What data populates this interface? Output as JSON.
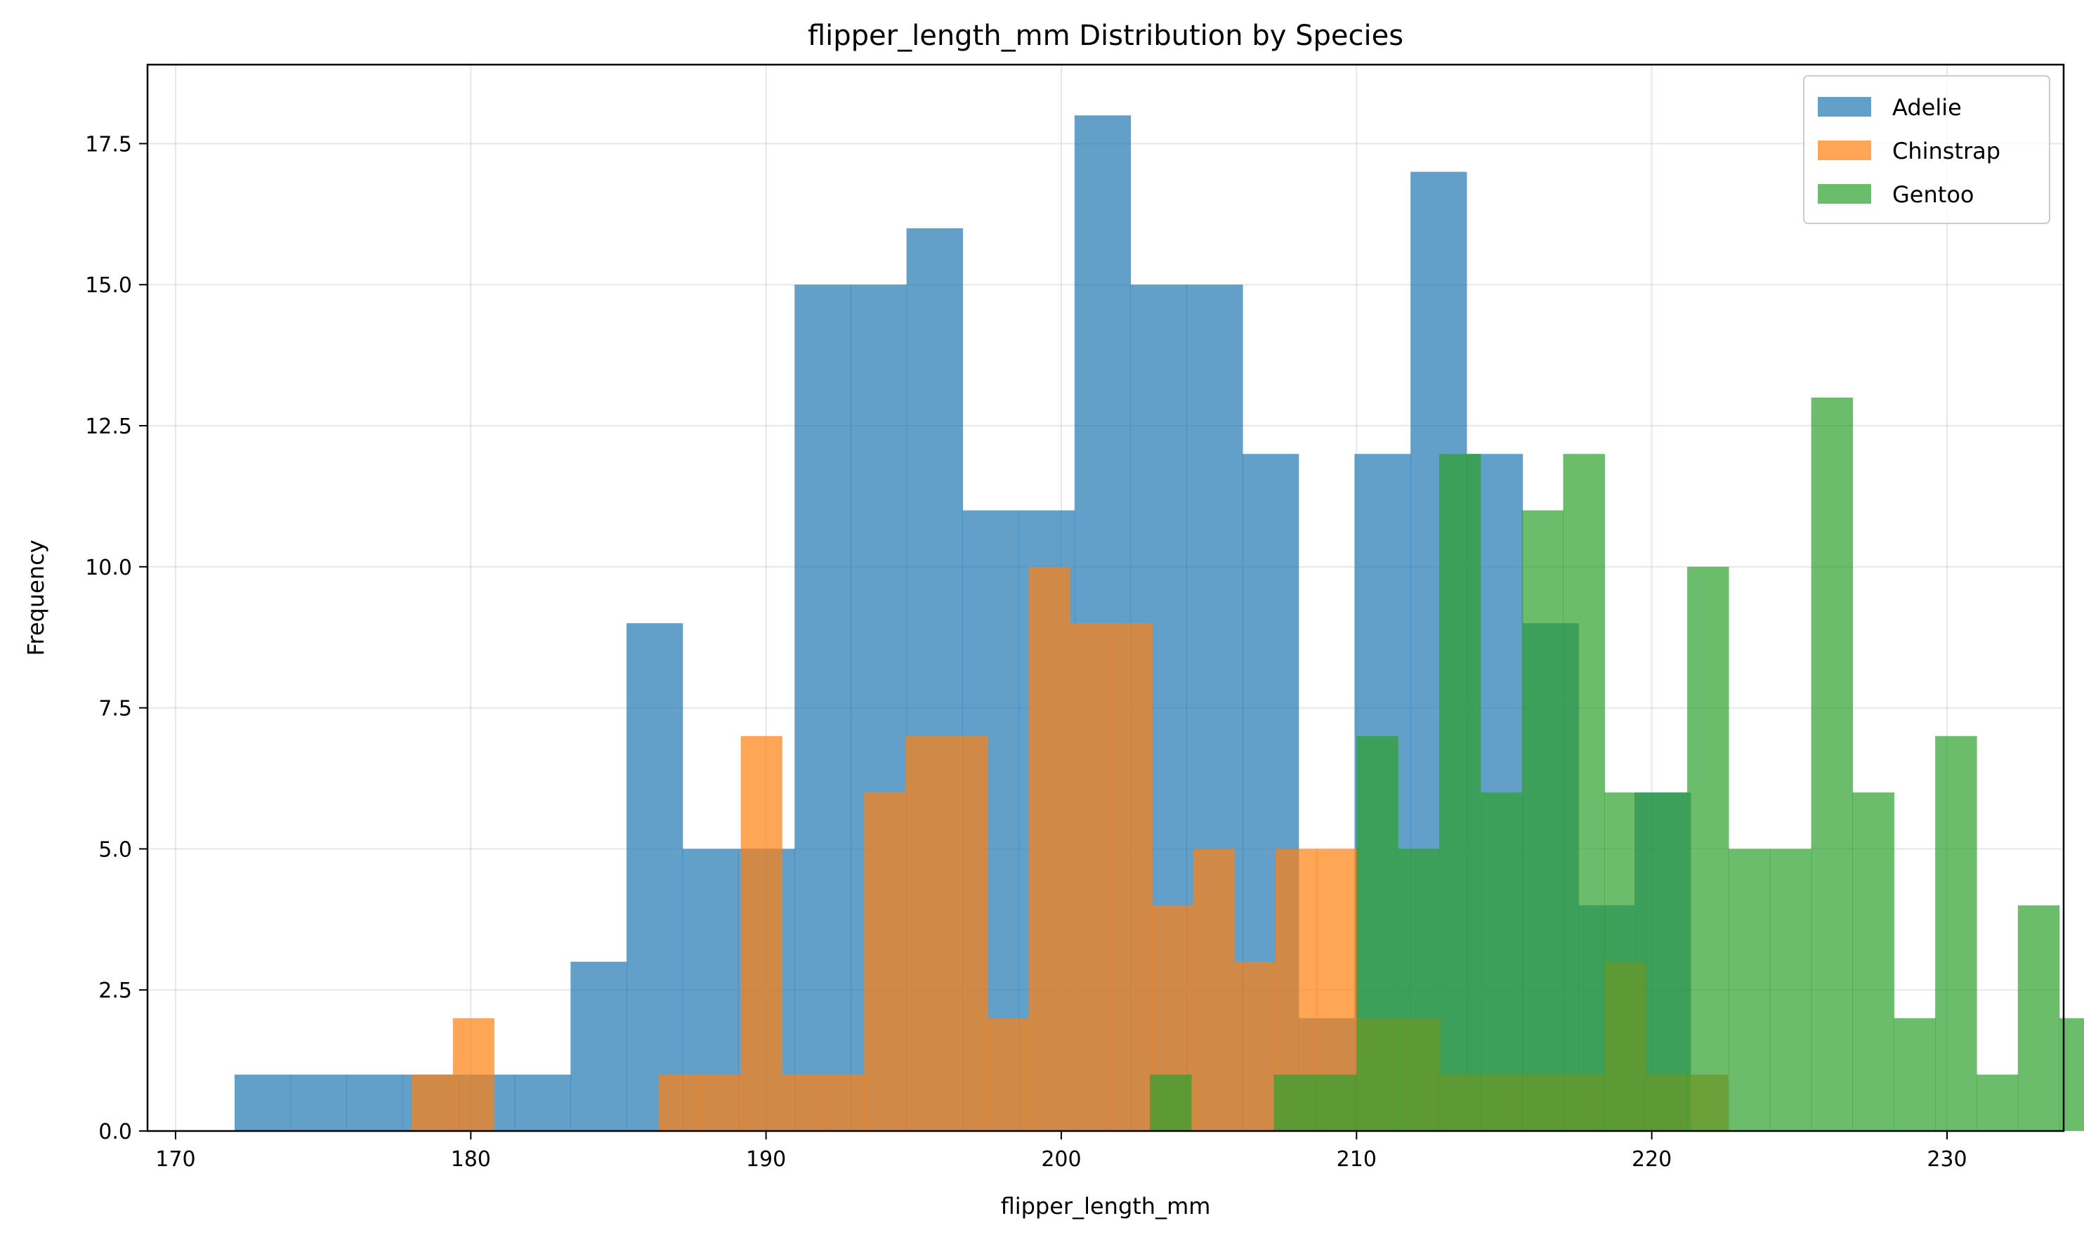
{
  "chart_data": {
    "type": "histogram",
    "title": "flipper_length_mm Distribution by Species",
    "xlabel": "flipper_length_mm",
    "ylabel": "Frequency",
    "xlim": [
      169.05,
      233.95
    ],
    "ylim": [
      0,
      18.9
    ],
    "xticks": [
      170,
      180,
      190,
      200,
      210,
      220,
      230
    ],
    "yticks": [
      0.0,
      2.5,
      5.0,
      7.5,
      10.0,
      12.5,
      15.0,
      17.5
    ],
    "ytick_labels": [
      "0.0",
      "2.5",
      "5.0",
      "7.5",
      "10.0",
      "12.5",
      "15.0",
      "17.5"
    ],
    "grid": true,
    "legend_position": "top-right",
    "bar_alpha": 0.7,
    "series": [
      {
        "name": "Adelie",
        "color": "#1f77b4",
        "bin_start": 172,
        "bin_width": 1.8966,
        "counts": [
          1,
          1,
          1,
          1,
          1,
          1,
          3,
          9,
          5,
          5,
          15,
          15,
          16,
          11,
          11,
          18,
          15,
          15,
          12,
          2,
          12,
          17,
          12,
          9,
          4,
          6
        ]
      },
      {
        "name": "Chinstrap",
        "color": "#ff7f0e",
        "bin_start": 178,
        "bin_width": 1.393,
        "counts": [
          1,
          2,
          0,
          0,
          0,
          0,
          1,
          1,
          7,
          1,
          1,
          6,
          7,
          7,
          2,
          10,
          9,
          9,
          4,
          5,
          3,
          5,
          5,
          2,
          2,
          1,
          1,
          1,
          1,
          3,
          1,
          1
        ]
      },
      {
        "name": "Gentoo",
        "color": "#2ca02c",
        "bin_start": 203,
        "bin_width": 1.4,
        "counts": [
          1,
          0,
          0,
          1,
          1,
          7,
          5,
          12,
          6,
          11,
          12,
          6,
          6,
          10,
          5,
          5,
          13,
          6,
          2,
          7,
          1,
          4,
          2,
          8
        ]
      }
    ]
  }
}
